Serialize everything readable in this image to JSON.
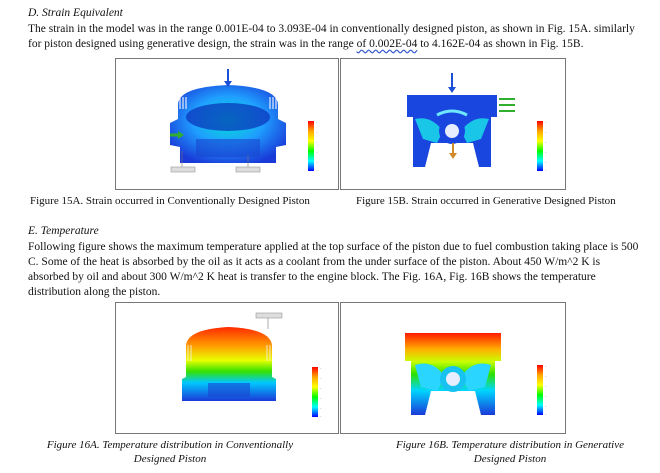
{
  "section_d": {
    "heading": "D.  Strain Equivalent",
    "line1": "The strain in the model was in the range 0.001E-04 to 3.093E-04 in conventionally designed piston, as shown in Fig. 15A. similarly",
    "line2_a": "for piston designed using generative design, the strain was in the range ",
    "line2_b": "of 0.002E-04",
    "line2_c": " to 4.162E-04 as shown in Fig. 15B."
  },
  "figures_15": {
    "caption_a": "Figure 15A. Strain occurred in Conventionally Designed Piston",
    "caption_b": "Figure 15B. Strain occurred in Generative Designed Piston"
  },
  "section_e": {
    "heading": "E.  Temperature",
    "lines": [
      "Following figure shows the maximum temperature applied at the top surface of the piston due to fuel combustion taking place is 500",
      "C. Some of the heat is absorbed by the oil as it acts as a coolant from the under surface of the piston. About 450 W/m^2 K is",
      "absorbed by oil and about 300 W/m^2 K heat is transfer to the engine block. The Fig. 16A, Fig. 16B shows the temperature",
      "distribution along the piston."
    ]
  },
  "figures_16": {
    "caption_a_line1": "Figure 16A. Temperature distribution in Conventionally",
    "caption_a_line2": "Designed Piston",
    "caption_b_line1": "Figure 16B. Temperature distribution in Generative",
    "caption_b_line2": "Designed Piston"
  },
  "colors": {
    "arrow_blue": "#1a4fd6",
    "arrow_green": "#2fae2f",
    "legend_gradient": [
      "#ff0000",
      "#ffa500",
      "#ffff00",
      "#00ff00",
      "#00ffff",
      "#0000ff"
    ]
  }
}
